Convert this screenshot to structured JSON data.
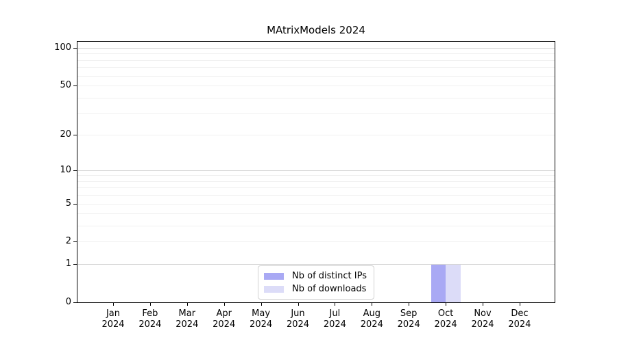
{
  "chart_data": {
    "type": "bar",
    "title": "MAtrixModels 2024",
    "categories": [
      "Jan 2024",
      "Feb 2024",
      "Mar 2024",
      "Apr 2024",
      "May 2024",
      "Jun 2024",
      "Jul 2024",
      "Aug 2024",
      "Sep 2024",
      "Oct 2024",
      "Nov 2024",
      "Dec 2024"
    ],
    "series": [
      {
        "name": "Nb of distinct IPs",
        "color": "#a9a9f4",
        "values": [
          0,
          0,
          0,
          0,
          0,
          0,
          0,
          0,
          0,
          1,
          0,
          0
        ]
      },
      {
        "name": "Nb of downloads",
        "color": "#dcdcf8",
        "values": [
          0,
          0,
          0,
          0,
          0,
          0,
          0,
          0,
          0,
          1,
          0,
          0
        ]
      }
    ],
    "xlabel": "",
    "ylabel": "",
    "y_axis": {
      "scale": "log1p",
      "ticks": [
        0,
        1,
        2,
        5,
        10,
        20,
        50,
        100
      ],
      "major_gridlines": [
        1,
        10,
        100
      ],
      "minor_gridlines": [
        2,
        3,
        4,
        5,
        6,
        7,
        8,
        9,
        20,
        30,
        40,
        50,
        60,
        70,
        80,
        90
      ],
      "ylim": [
        0,
        113
      ]
    },
    "legend": {
      "position": "lower center",
      "entries": [
        "Nb of distinct IPs",
        "Nb of downloads"
      ]
    },
    "grid": "horizontal",
    "colors": {
      "axis": "#000000",
      "major_grid": "#d4d4d4",
      "minor_grid": "#f0f0f0",
      "background": "#ffffff"
    }
  }
}
